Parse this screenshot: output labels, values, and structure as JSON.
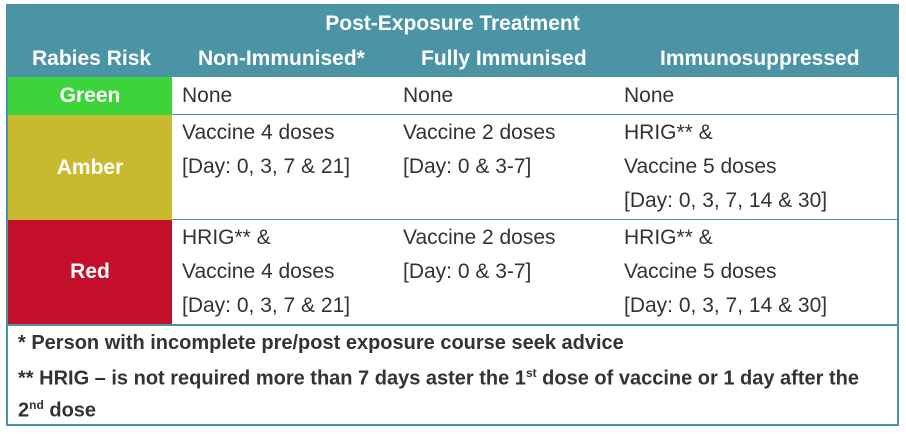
{
  "header": {
    "group_title": "Post-Exposure Treatment",
    "col_risk": "Rabies Risk",
    "col_non_immunised": "Non-Immunised*",
    "col_fully_immunised": "Fully Immunised",
    "col_immunosuppressed": "Immunosuppressed"
  },
  "colors": {
    "header_bg": "#4a94a6",
    "green": "#3cd43a",
    "amber": "#c9b92e",
    "red": "#c40f2a"
  },
  "rows": [
    {
      "risk": "Green",
      "non_immunised": [
        "None"
      ],
      "fully_immunised": [
        "None"
      ],
      "immunosuppressed": [
        "None"
      ]
    },
    {
      "risk": "Amber",
      "non_immunised": [
        "Vaccine 4 doses",
        "[Day: 0, 3, 7 & 21]"
      ],
      "fully_immunised": [
        "Vaccine 2 doses",
        "[Day: 0 & 3-7]"
      ],
      "immunosuppressed": [
        "HRIG** &",
        "Vaccine 5 doses",
        "[Day: 0, 3, 7, 14 & 30]"
      ]
    },
    {
      "risk": "Red",
      "non_immunised": [
        "HRIG** &",
        "Vaccine 4 doses",
        "[Day: 0, 3, 7 & 21]"
      ],
      "fully_immunised": [
        "Vaccine 2 doses",
        "[Day: 0 & 3-7]"
      ],
      "immunosuppressed": [
        "HRIG** &",
        "Vaccine 5 doses",
        "[Day: 0, 3, 7, 14 & 30]"
      ]
    }
  ],
  "notes": {
    "note1": "* Person with incomplete pre/post exposure course seek advice",
    "note2_a": "** HRIG – is not required more than 7 days aster the 1",
    "note2_sup1": "st",
    "note2_b": " dose of vaccine or 1 day after the",
    "note2_c": "2",
    "note2_sup2": "nd",
    "note2_d": " dose"
  }
}
